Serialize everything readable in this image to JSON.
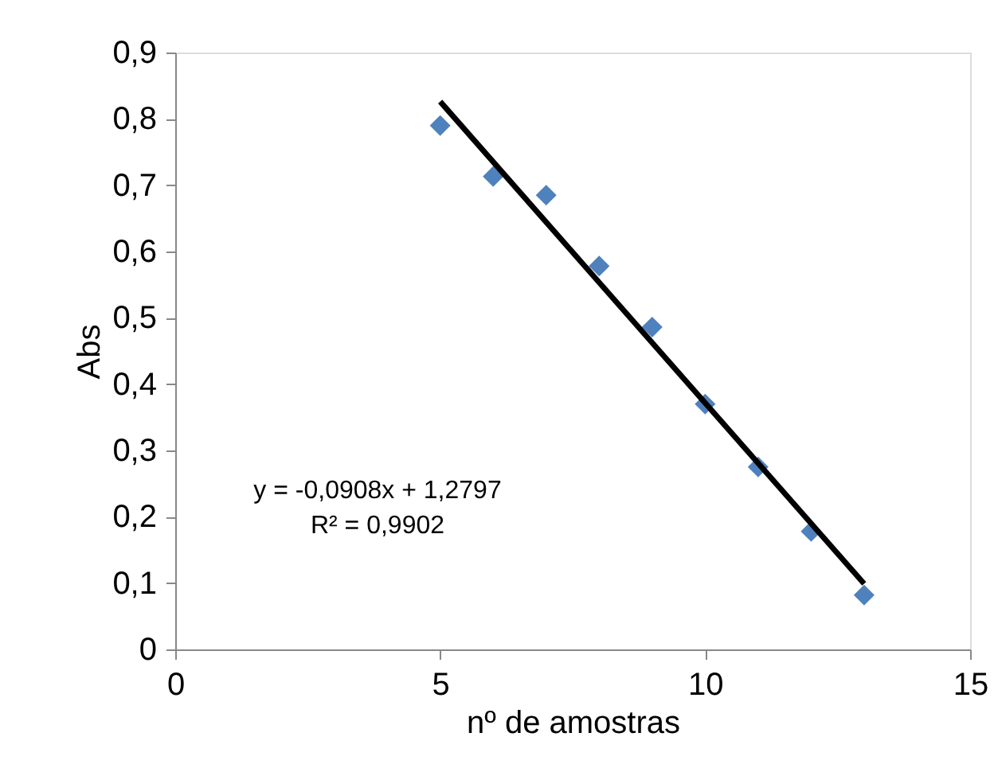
{
  "chart_data": {
    "type": "scatter",
    "xlabel": "nº de amostras",
    "ylabel": "Abs",
    "x": [
      5,
      6,
      7,
      8,
      9,
      10,
      11,
      12,
      13
    ],
    "series": [
      {
        "color": "#4f81bd",
        "marker": "diamond",
        "values": [
          0.79,
          0.713,
          0.685,
          0.578,
          0.486,
          0.37,
          0.275,
          0.178,
          0.082
        ]
      },
      {
        "type": "line",
        "color": "#000000",
        "x": [
          5,
          13
        ],
        "values": [
          0.826,
          0.099
        ],
        "line_style": "solid"
      }
    ],
    "xlim": [
      0,
      15
    ],
    "xticks": [
      0,
      5,
      10,
      15
    ],
    "ylim": [
      0,
      0.9
    ],
    "yticks": [
      0,
      {
        "value": 0.1,
        "label": "0,1"
      },
      {
        "value": 0.2,
        "label": "0,2"
      },
      {
        "value": 0.3,
        "label": "0,3"
      },
      {
        "value": 0.4,
        "label": "0,4"
      },
      {
        "value": 0.5,
        "label": "0,5"
      },
      {
        "value": 0.6,
        "label": "0,6"
      },
      {
        "value": 0.7,
        "label": "0,7"
      },
      {
        "value": 0.8,
        "label": "0,8"
      },
      {
        "value": 0.9,
        "label": "0,9"
      }
    ],
    "annotations": [
      "y = -0,0908x + 1,2797",
      "R² = 0,9902"
    ],
    "grid": false
  }
}
